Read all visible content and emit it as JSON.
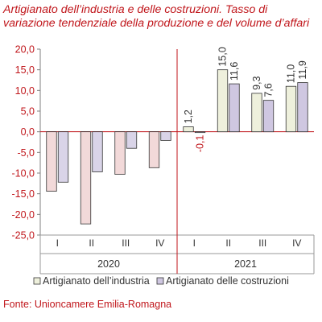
{
  "chart_data": {
    "type": "bar",
    "title_line1": "Artigianato dell’industria e delle costruzioni. Tasso di",
    "title_line2": "variazione tendenziale della produzione e del volume d’affari",
    "source": "Fonte: Unioncamere Emilia-Romagna",
    "categories": [
      "I",
      "II",
      "III",
      "IV",
      "I",
      "II",
      "III",
      "IV"
    ],
    "years": [
      {
        "label": "2020",
        "from": 0,
        "to": 3
      },
      {
        "label": "2021",
        "from": 4,
        "to": 7
      }
    ],
    "ylim": [
      -25,
      20
    ],
    "yticks": [
      20,
      15,
      10,
      5,
      0,
      -5,
      -10,
      -15,
      -20,
      -25
    ],
    "ytick_labels": [
      "20,0",
      "15,0",
      "10,0",
      "5,0",
      "0,0",
      "-5,0",
      "-10,0",
      "-15,0",
      "-20,0",
      "-25,0"
    ],
    "grid": false,
    "legend_position": "bottom",
    "series": [
      {
        "name": "Artigianato dell’industria",
        "color_2020": "#f2d9d9",
        "color_2021": "#eef0dc",
        "values": [
          -14.4,
          -22.3,
          -10.3,
          -8.7,
          1.2,
          15.0,
          9.3,
          11.0
        ],
        "data_labels": [
          null,
          null,
          null,
          null,
          "1,2",
          "15,0",
          "9,3",
          "11,0"
        ]
      },
      {
        "name": "Artigianato delle costruzioni",
        "color_2020": "#d9d4e8",
        "color_2021": "#cfc7e1",
        "values": [
          -12.2,
          -9.7,
          -4.0,
          -2.1,
          -0.1,
          11.6,
          7.6,
          11.9
        ],
        "data_labels": [
          null,
          null,
          null,
          null,
          "-0,1",
          "11,6",
          "7,6",
          "11,9"
        ]
      }
    ],
    "colors": {
      "accent": "#c0161b",
      "axis": "#808080",
      "bar_stroke": "#333333",
      "negative_label": "#c0161b"
    }
  }
}
